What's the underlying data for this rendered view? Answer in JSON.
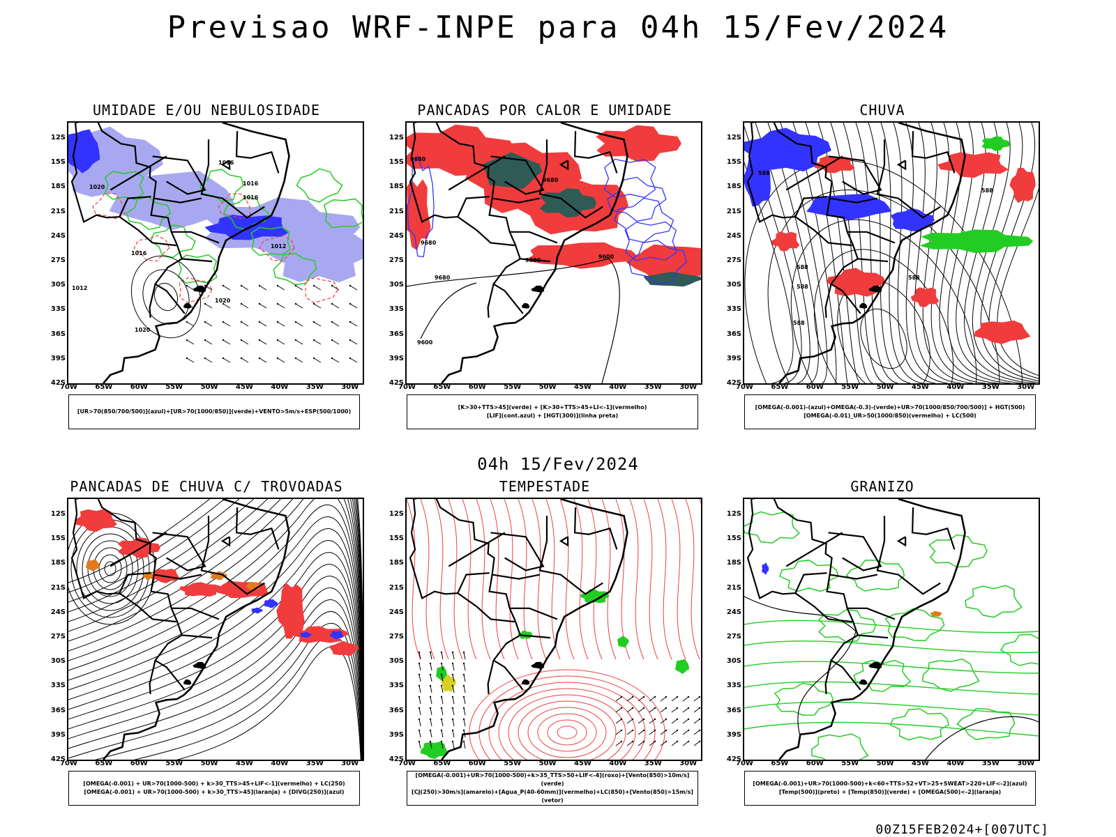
{
  "title": "Previsao WRF-INPE  para 04h 15/Fev/2024",
  "mid_title": "04h 15/Fev/2024",
  "footer": "00Z15FEB2024+[007UTC]",
  "lat_labels": [
    "12S",
    "15S",
    "18S",
    "21S",
    "24S",
    "27S",
    "30S",
    "33S",
    "36S",
    "39S",
    "42S"
  ],
  "lon_labels": [
    "70W",
    "65W",
    "60W",
    "55W",
    "50W",
    "45W",
    "40W",
    "35W",
    "30W"
  ],
  "colors": {
    "blue": "#3333ff",
    "light_blue": "#a8a8f0",
    "green": "#22cc22",
    "red": "#f03c3c",
    "dark_teal": "#2f5a55",
    "orange": "#e07b20",
    "yellow": "#d8d020",
    "black": "#000000"
  },
  "panels": [
    {
      "id": "umidade",
      "title": "UMIDADE E/OU NEBULOSIDADE",
      "legend": [
        "[UR>70(850/700/500)](azul)+[UR>70(1000/850)](verde)+VENTO>5m/s+ESP(500/1000)"
      ],
      "contour_labels": [
        "1016",
        "1020",
        "1016",
        "1016",
        "1012",
        "1020",
        "1020",
        "1016",
        "1012"
      ]
    },
    {
      "id": "pancadas-calor",
      "title": "PANCADAS POR CALOR E UMIDADE",
      "legend": [
        "[K>30+TTS>45](verde) + [K>30+TTS>45+LI<-1](vermelho)",
        "[LIF](cont.azul) + [HGT(300)](linha preta)"
      ],
      "contour_labels": [
        "9680",
        "9680",
        "9680",
        "9680",
        "9680",
        "9600",
        "9600"
      ]
    },
    {
      "id": "chuva",
      "title": "CHUVA",
      "legend": [
        "[OMEGA(-0.001)-(azul)+OMEGA(-0.3)-(verde)+UR>70(1000/850/700/500)] + HGT(500)",
        "[OMEGA(-0.01)_UR>50(1000/850)(vermelho) + LC(500)"
      ],
      "contour_labels": [
        "588",
        "588",
        "588",
        "588",
        "588",
        "588"
      ]
    },
    {
      "id": "trovoadas",
      "title": "PANCADAS DE CHUVA C/ TROVOADAS",
      "legend": [
        "[OMEGA(-0.001) + UR>70(1000-500) + k>30_TTS>45+LIF<-1](vermelho) + LC(250)",
        "[OMEGA(-0.001) + UR>70(1000-500) + k>30_TTS>45](laranja) + [DIVG(250)](azul)"
      ],
      "contour_labels": []
    },
    {
      "id": "tempestade",
      "title": "TEMPESTADE",
      "legend": [
        "[OMEGA(-0.001)+UR>70(1000-500)+k>35_TTS>50+LIF<-4](roxo)+[Vento(850)>10m/s](verde)",
        "[CJ(250)>30m/s](amarelo)+[Agua_P(40-60mm)](vermelho)+LC(850)+[Vento(850)>15m/s](vetor)"
      ],
      "contour_labels": []
    },
    {
      "id": "granizo",
      "title": "GRANIZO",
      "legend": [
        "[OMEGA(-0.001)+UR>70(1000-500)+k<60+TTS>52+VT>25+SWEAT>220+LIF<-2](azul)",
        "[Temp(500)](preto) + [Temp(850)](verde) + [OMEGA(500)<-2](laranja)"
      ],
      "contour_labels": []
    }
  ]
}
